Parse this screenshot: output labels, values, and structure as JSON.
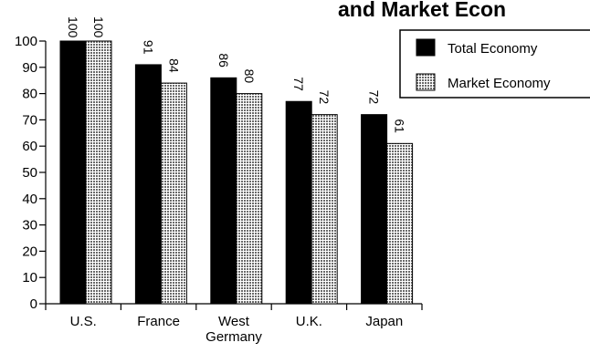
{
  "chart_data": {
    "type": "bar",
    "title": "and Market Econ",
    "categories": [
      "U.S.",
      "France",
      "West\nGermany",
      "U.K.",
      "Japan"
    ],
    "series": [
      {
        "name": "Total Economy",
        "values": [
          100,
          91,
          86,
          77,
          72
        ],
        "color": "#000000"
      },
      {
        "name": "Market Economy",
        "values": [
          100,
          84,
          80,
          72,
          61
        ],
        "color": "#bdbdbd"
      }
    ],
    "ylim": [
      0,
      100
    ],
    "yticks": [
      0,
      10,
      20,
      30,
      40,
      50,
      60,
      70,
      80,
      90,
      100
    ],
    "legend_position": "top-right",
    "grid": false
  }
}
